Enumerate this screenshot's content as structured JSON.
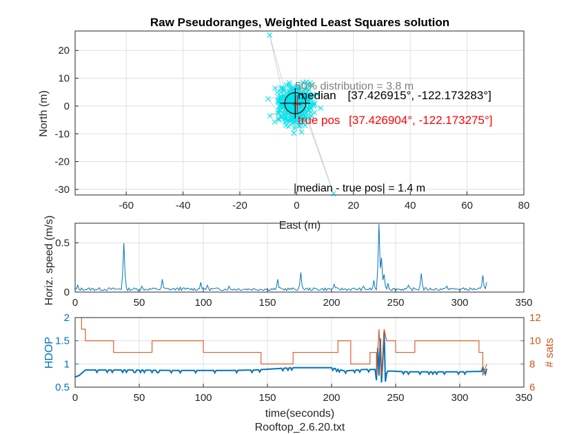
{
  "chart_data": [
    {
      "type": "scatter",
      "title": "Raw Pseudoranges, Weighted Least Squares solution",
      "xlabel": "East (m)",
      "ylabel": "North (m)",
      "xlim": [
        -78,
        80
      ],
      "ylim": [
        -32,
        27
      ],
      "xticks": [
        -60,
        -40,
        -20,
        0,
        20,
        40,
        60,
        80
      ],
      "yticks": [
        20,
        10,
        0,
        -10,
        -20,
        -30
      ],
      "grid": true,
      "colors": {
        "points": "#00e5ee",
        "path": "#c8c8c8",
        "median": "#000000",
        "true": "#ff0000",
        "circle": "#000000",
        "annotation_gray": "#808080"
      },
      "outliers": [
        {
          "x": -9.5,
          "y": 25.5
        },
        {
          "x": 13.0,
          "y": -31.5
        }
      ],
      "cluster": {
        "center": [
          0,
          0.5
        ],
        "spread_x": 3.5,
        "spread_y": 3.5,
        "n": 300
      },
      "median_marker": {
        "x": -0.5,
        "y": 1.0
      },
      "true_marker": {
        "x": 0.2,
        "y": 0.5
      },
      "circle_radius_m": 3.8,
      "annotations": {
        "distribution": "50% distribution = 3.8 m",
        "median_label": "median",
        "median_value": "[37.426915°, -122.173283°]",
        "true_label": "true pos",
        "true_value": "[37.426904°, -122.173275°]",
        "error": "|median - true pos| = 1.4 m"
      }
    },
    {
      "type": "line",
      "ylabel": "Horiz. speed (m/s)",
      "xlim": [
        0,
        350
      ],
      "ylim": [
        0,
        0.7
      ],
      "xticks": [
        0,
        50,
        100,
        150,
        200,
        250,
        300,
        350
      ],
      "yticks": [
        0,
        0.5
      ],
      "color": "#0072bd",
      "baseline": 0.03,
      "duration": 321,
      "spikes": [
        {
          "t": 2,
          "v": 0.07
        },
        {
          "t": 38,
          "v": 0.5
        },
        {
          "t": 52,
          "v": 0.06
        },
        {
          "t": 68,
          "v": 0.13
        },
        {
          "t": 82,
          "v": 0.05
        },
        {
          "t": 98,
          "v": 0.1
        },
        {
          "t": 103,
          "v": 0.07
        },
        {
          "t": 120,
          "v": 0.06
        },
        {
          "t": 158,
          "v": 0.13
        },
        {
          "t": 176,
          "v": 0.2
        },
        {
          "t": 202,
          "v": 0.08
        },
        {
          "t": 225,
          "v": 0.06
        },
        {
          "t": 233,
          "v": 0.12
        },
        {
          "t": 237,
          "v": 0.69
        },
        {
          "t": 239,
          "v": 0.35
        },
        {
          "t": 241,
          "v": 0.18
        },
        {
          "t": 244,
          "v": 0.09
        },
        {
          "t": 260,
          "v": 0.07
        },
        {
          "t": 270,
          "v": 0.19
        },
        {
          "t": 290,
          "v": 0.06
        },
        {
          "t": 318,
          "v": 0.17
        },
        {
          "t": 321,
          "v": 0.1
        }
      ]
    },
    {
      "type": "line",
      "xlabel": "time(seconds)",
      "ylabel": "HDOP",
      "ylabel_right": "# sats",
      "xlim": [
        0,
        350
      ],
      "ylim": [
        0.5,
        2
      ],
      "ylim_right": [
        6,
        12
      ],
      "xticks": [
        0,
        50,
        100,
        150,
        200,
        250,
        300,
        350
      ],
      "yticks": [
        0.5,
        1,
        1.5,
        2
      ],
      "yticks_right": [
        6,
        8,
        10,
        12
      ],
      "series": [
        {
          "axis": "left",
          "color": "#0072bd",
          "points": [
            [
              0,
              0.72
            ],
            [
              3,
              0.75
            ],
            [
              6,
              0.82
            ],
            [
              8,
              0.87
            ],
            [
              40,
              0.87
            ],
            [
              80,
              0.86
            ],
            [
              120,
              0.86
            ],
            [
              140,
              0.87
            ],
            [
              170,
              0.92
            ],
            [
              200,
              0.92
            ],
            [
              210,
              0.85
            ],
            [
              225,
              0.88
            ],
            [
              234,
              0.88
            ],
            [
              235,
              0.65
            ],
            [
              236,
              1.35
            ],
            [
              237,
              0.75
            ],
            [
              238,
              1.55
            ],
            [
              239,
              0.6
            ],
            [
              240,
              1.1
            ],
            [
              241,
              1.7
            ],
            [
              242,
              0.62
            ],
            [
              243,
              0.85
            ],
            [
              260,
              0.83
            ],
            [
              300,
              0.83
            ],
            [
              317,
              0.84
            ],
            [
              318,
              0.93
            ],
            [
              320,
              0.78
            ],
            [
              321,
              0.9
            ]
          ]
        },
        {
          "axis": "right",
          "color": "#d95319",
          "points": [
            [
              0,
              12
            ],
            [
              5,
              12
            ],
            [
              5,
              11
            ],
            [
              8,
              11
            ],
            [
              8,
              10
            ],
            [
              30,
              10
            ],
            [
              30,
              9
            ],
            [
              60,
              9
            ],
            [
              60,
              10
            ],
            [
              100,
              10
            ],
            [
              100,
              9
            ],
            [
              145,
              9
            ],
            [
              145,
              8
            ],
            [
              170,
              8
            ],
            [
              170,
              9
            ],
            [
              205,
              9
            ],
            [
              205,
              10
            ],
            [
              215,
              10
            ],
            [
              215,
              8
            ],
            [
              230,
              8
            ],
            [
              230,
              9
            ],
            [
              235,
              9
            ],
            [
              235,
              7
            ],
            [
              237,
              11
            ],
            [
              239,
              7
            ],
            [
              241,
              11
            ],
            [
              243,
              10
            ],
            [
              250,
              10
            ],
            [
              250,
              9
            ],
            [
              265,
              9
            ],
            [
              265,
              10
            ],
            [
              315,
              10
            ],
            [
              315,
              9
            ],
            [
              318,
              9
            ],
            [
              318,
              7
            ],
            [
              321,
              8
            ]
          ]
        }
      ]
    }
  ],
  "footer": "Rooftop_2.6.20.txt"
}
